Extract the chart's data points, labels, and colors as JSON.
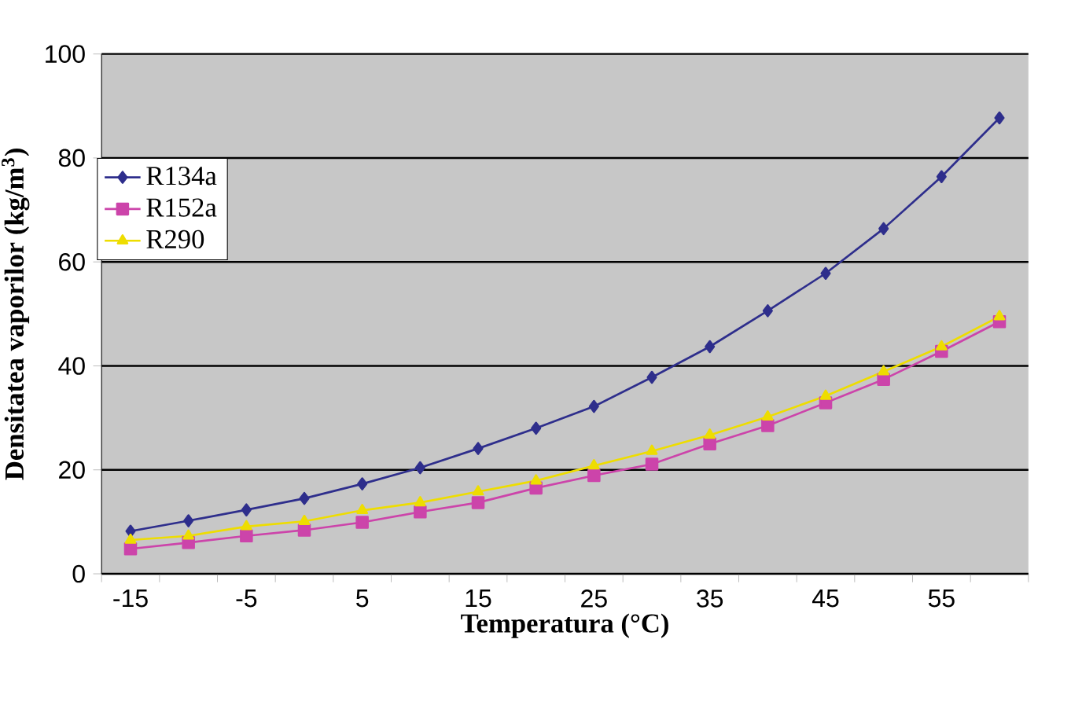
{
  "chart_data": {
    "type": "line",
    "xlabel": "Temperatura (°C)",
    "ylabel": "Densitatea vaporilor (kg/m$^{3}$)",
    "categories": [
      "-15",
      null,
      "-5",
      null,
      "5",
      null,
      "15",
      null,
      "25",
      null,
      "35",
      null,
      "45",
      null,
      "55",
      null
    ],
    "ylim": [
      0,
      100
    ],
    "yticks": [
      0,
      20,
      40,
      60,
      80,
      100
    ],
    "grid": "y",
    "legend": "top left",
    "series": [
      {
        "name": "R134a",
        "color": "#2e2e8c",
        "marker": "diamond",
        "values": [
          8.2,
          10.2,
          12.3,
          14.5,
          17.3,
          20.4,
          24.1,
          28.0,
          32.2,
          37.8,
          43.7,
          50.6,
          57.8,
          66.4,
          76.4,
          87.7
        ]
      },
      {
        "name": "R152a",
        "color": "#cc44aa",
        "marker": "square",
        "values": [
          4.8,
          6.0,
          7.3,
          8.4,
          9.9,
          11.9,
          13.7,
          16.5,
          18.9,
          21.1,
          25.0,
          28.5,
          32.9,
          37.4,
          42.8,
          48.5
        ]
      },
      {
        "name": "R290",
        "color": "#eedd00",
        "marker": "triangle",
        "values": [
          6.5,
          7.3,
          9.1,
          10.1,
          12.2,
          13.7,
          15.8,
          17.9,
          20.8,
          23.6,
          26.7,
          30.2,
          34.2,
          38.9,
          43.7,
          49.5
        ]
      }
    ]
  }
}
